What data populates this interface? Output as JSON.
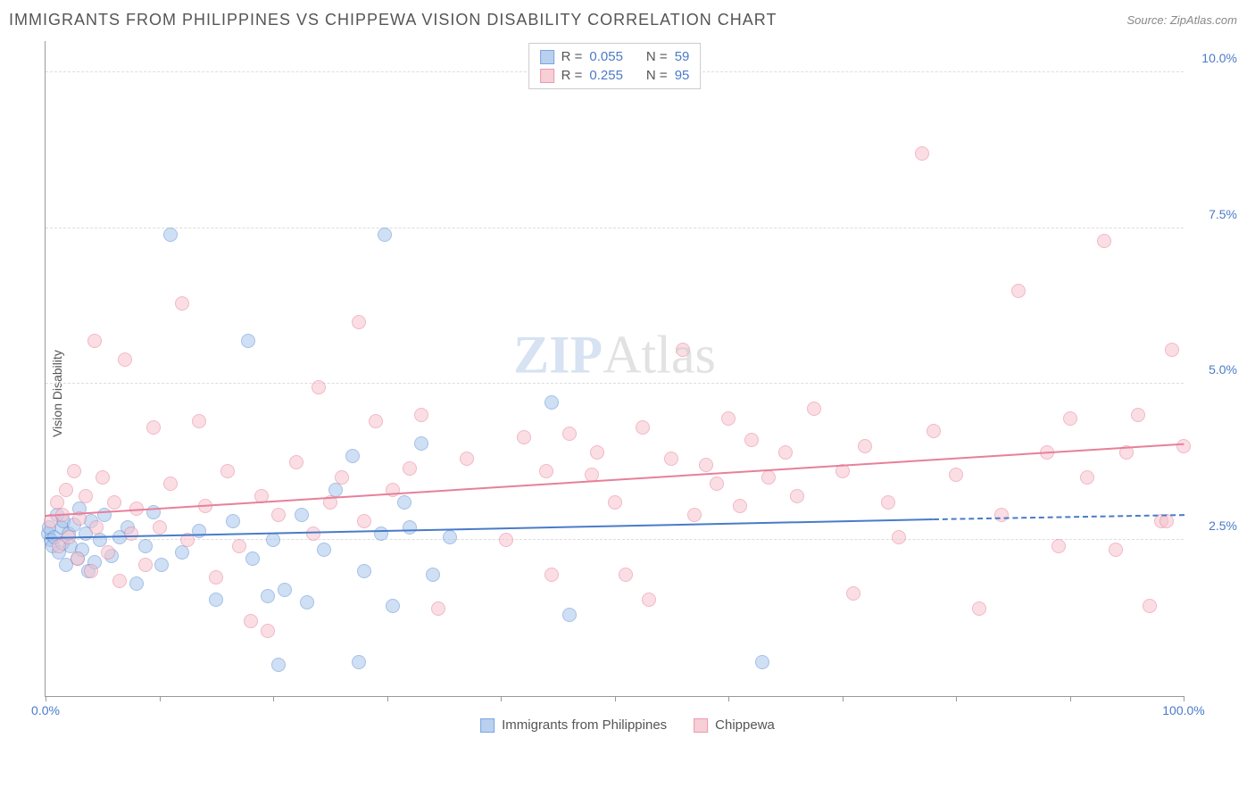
{
  "header": {
    "title": "IMMIGRANTS FROM PHILIPPINES VS CHIPPEWA VISION DISABILITY CORRELATION CHART",
    "source_prefix": "Source: ",
    "source": "ZipAtlas.com"
  },
  "watermark": {
    "z": "ZIP",
    "rest": "Atlas"
  },
  "chart": {
    "type": "scatter",
    "ylabel": "Vision Disability",
    "xlim": [
      0,
      100
    ],
    "ylim": [
      0,
      10.5
    ],
    "background_color": "#ffffff",
    "grid_color": "#dddddd",
    "axis_color": "#999999",
    "text_color": "#555555",
    "tick_label_color": "#4a7bc8",
    "label_fontsize": 14,
    "title_fontsize": 18,
    "yticks": [
      {
        "value": 2.5,
        "label": "2.5%"
      },
      {
        "value": 5.0,
        "label": "5.0%"
      },
      {
        "value": 7.5,
        "label": "7.5%"
      },
      {
        "value": 10.0,
        "label": "10.0%"
      }
    ],
    "xticks": [
      0,
      10,
      20,
      30,
      40,
      50,
      60,
      70,
      80,
      90,
      100
    ],
    "xtick_labels": {
      "start": "0.0%",
      "end": "100.0%"
    },
    "series": [
      {
        "id": "philippines",
        "label": "Immigrants from Philippines",
        "fill_color": "#a8c5ec",
        "stroke_color": "#5b8fd6",
        "fill_opacity": 0.55,
        "marker_radius": 8,
        "R": "0.055",
        "N": "59",
        "trend": {
          "x1": 0,
          "y1": 2.55,
          "x2": 78,
          "y2": 2.85,
          "dash_to_x": 100,
          "dash_to_y": 2.92,
          "color": "#4a7bc8"
        },
        "points": [
          [
            0.2,
            2.6
          ],
          [
            0.3,
            2.7
          ],
          [
            0.5,
            2.5
          ],
          [
            0.6,
            2.4
          ],
          [
            0.8,
            2.55
          ],
          [
            1.0,
            2.9
          ],
          [
            1.2,
            2.3
          ],
          [
            1.4,
            2.7
          ],
          [
            1.5,
            2.45
          ],
          [
            1.6,
            2.8
          ],
          [
            1.8,
            2.1
          ],
          [
            2.0,
            2.6
          ],
          [
            2.2,
            2.4
          ],
          [
            2.5,
            2.75
          ],
          [
            2.8,
            2.2
          ],
          [
            3.0,
            3.0
          ],
          [
            3.2,
            2.35
          ],
          [
            3.5,
            2.6
          ],
          [
            3.8,
            2.0
          ],
          [
            4.0,
            2.8
          ],
          [
            4.3,
            2.15
          ],
          [
            4.8,
            2.5
          ],
          [
            5.2,
            2.9
          ],
          [
            5.8,
            2.25
          ],
          [
            6.5,
            2.55
          ],
          [
            7.2,
            2.7
          ],
          [
            8.0,
            1.8
          ],
          [
            8.8,
            2.4
          ],
          [
            9.5,
            2.95
          ],
          [
            10.2,
            2.1
          ],
          [
            11.0,
            7.4
          ],
          [
            12.0,
            2.3
          ],
          [
            13.5,
            2.65
          ],
          [
            15.0,
            1.55
          ],
          [
            16.5,
            2.8
          ],
          [
            17.8,
            5.7
          ],
          [
            18.2,
            2.2
          ],
          [
            19.5,
            1.6
          ],
          [
            20.0,
            2.5
          ],
          [
            21.0,
            1.7
          ],
          [
            22.5,
            2.9
          ],
          [
            23.0,
            1.5
          ],
          [
            24.5,
            2.35
          ],
          [
            25.5,
            3.3
          ],
          [
            27.0,
            3.85
          ],
          [
            28.0,
            2.0
          ],
          [
            29.5,
            2.6
          ],
          [
            29.8,
            7.4
          ],
          [
            30.5,
            1.45
          ],
          [
            31.5,
            3.1
          ],
          [
            32.0,
            2.7
          ],
          [
            33.0,
            4.05
          ],
          [
            34.0,
            1.95
          ],
          [
            35.5,
            2.55
          ],
          [
            20.5,
            0.5
          ],
          [
            27.5,
            0.55
          ],
          [
            44.5,
            4.7
          ],
          [
            46.0,
            1.3
          ],
          [
            63.0,
            0.55
          ]
        ]
      },
      {
        "id": "chippewa",
        "label": "Chippewa",
        "fill_color": "#f6c4ce",
        "stroke_color": "#e87f9a",
        "fill_opacity": 0.55,
        "marker_radius": 8,
        "R": "0.255",
        "N": "95",
        "trend": {
          "x1": 0,
          "y1": 2.9,
          "x2": 100,
          "y2": 4.05,
          "color": "#e87f9a"
        },
        "points": [
          [
            0.5,
            2.8
          ],
          [
            1.0,
            3.1
          ],
          [
            1.2,
            2.4
          ],
          [
            1.5,
            2.9
          ],
          [
            1.8,
            3.3
          ],
          [
            2.0,
            2.55
          ],
          [
            2.5,
            3.6
          ],
          [
            2.8,
            2.2
          ],
          [
            3.0,
            2.85
          ],
          [
            3.5,
            3.2
          ],
          [
            4.0,
            2.0
          ],
          [
            4.3,
            5.7
          ],
          [
            4.5,
            2.7
          ],
          [
            5.0,
            3.5
          ],
          [
            5.5,
            2.3
          ],
          [
            6.0,
            3.1
          ],
          [
            6.5,
            1.85
          ],
          [
            7.0,
            5.4
          ],
          [
            7.5,
            2.6
          ],
          [
            8.0,
            3.0
          ],
          [
            8.8,
            2.1
          ],
          [
            9.5,
            4.3
          ],
          [
            10.0,
            2.7
          ],
          [
            11.0,
            3.4
          ],
          [
            12.0,
            6.3
          ],
          [
            12.5,
            2.5
          ],
          [
            13.5,
            4.4
          ],
          [
            14.0,
            3.05
          ],
          [
            15.0,
            1.9
          ],
          [
            16.0,
            3.6
          ],
          [
            17.0,
            2.4
          ],
          [
            18.0,
            1.2
          ],
          [
            19.0,
            3.2
          ],
          [
            19.5,
            1.05
          ],
          [
            20.5,
            2.9
          ],
          [
            22.0,
            3.75
          ],
          [
            23.5,
            2.6
          ],
          [
            24.0,
            4.95
          ],
          [
            25.0,
            3.1
          ],
          [
            26.0,
            3.5
          ],
          [
            27.5,
            6.0
          ],
          [
            28.0,
            2.8
          ],
          [
            29.0,
            4.4
          ],
          [
            30.5,
            3.3
          ],
          [
            32.0,
            3.65
          ],
          [
            33.0,
            4.5
          ],
          [
            34.5,
            1.4
          ],
          [
            37.0,
            3.8
          ],
          [
            40.5,
            2.5
          ],
          [
            42.0,
            4.15
          ],
          [
            44.0,
            3.6
          ],
          [
            44.5,
            1.95
          ],
          [
            46.0,
            4.2
          ],
          [
            48.0,
            3.55
          ],
          [
            50.0,
            3.1
          ],
          [
            51.0,
            1.95
          ],
          [
            52.5,
            4.3
          ],
          [
            53.0,
            1.55
          ],
          [
            55.0,
            3.8
          ],
          [
            56.0,
            5.55
          ],
          [
            57.0,
            2.9
          ],
          [
            58.0,
            3.7
          ],
          [
            60.0,
            4.45
          ],
          [
            61.0,
            3.05
          ],
          [
            62.0,
            4.1
          ],
          [
            63.5,
            3.5
          ],
          [
            65.0,
            3.9
          ],
          [
            66.0,
            3.2
          ],
          [
            67.5,
            4.6
          ],
          [
            70.0,
            3.6
          ],
          [
            72.0,
            4.0
          ],
          [
            74.0,
            3.1
          ],
          [
            75.0,
            2.55
          ],
          [
            77.0,
            8.7
          ],
          [
            78.0,
            4.25
          ],
          [
            80.0,
            3.55
          ],
          [
            82.0,
            1.4
          ],
          [
            84.0,
            2.9
          ],
          [
            85.5,
            6.5
          ],
          [
            88.0,
            3.9
          ],
          [
            89.0,
            2.4
          ],
          [
            90.0,
            4.45
          ],
          [
            91.5,
            3.5
          ],
          [
            93.0,
            7.3
          ],
          [
            94.0,
            2.35
          ],
          [
            95.0,
            3.9
          ],
          [
            96.0,
            4.5
          ],
          [
            97.0,
            1.45
          ],
          [
            98.0,
            2.8
          ],
          [
            98.5,
            2.8
          ],
          [
            99.0,
            5.55
          ],
          [
            100.0,
            4.0
          ],
          [
            48.5,
            3.9
          ],
          [
            59.0,
            3.4
          ],
          [
            71.0,
            1.65
          ]
        ]
      }
    ],
    "legend_top": {
      "r_label": "R =",
      "n_label": "N ="
    },
    "legend_bottom_labels": [
      "Immigrants from Philippines",
      "Chippewa"
    ]
  }
}
